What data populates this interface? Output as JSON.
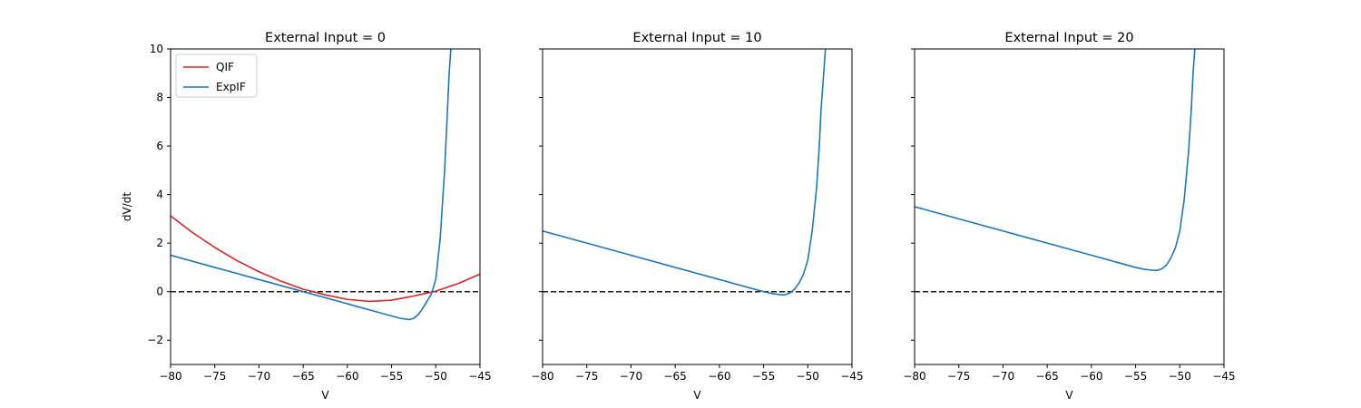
{
  "chart_data": [
    {
      "type": "line",
      "title": "External Input = 0",
      "xlabel": "V",
      "ylabel": "dV/dt",
      "xlim": [
        -80,
        -45
      ],
      "ylim": [
        -3,
        10
      ],
      "x_ticks": [
        "−80",
        "−75",
        "−70",
        "−65",
        "−60",
        "−55",
        "−50",
        "−45"
      ],
      "y_ticks": [
        "−2",
        "0",
        "2",
        "4",
        "6",
        "8",
        "10"
      ],
      "show_y_tick_labels": true,
      "reference_line": {
        "y": 0,
        "style": "dashed",
        "color": "#222222"
      },
      "legend": {
        "placement": "top-left",
        "entries": [
          "QIF",
          "ExpIF"
        ]
      },
      "series": [
        {
          "name": "QIF",
          "color": "#d62728",
          "x": [
            -80,
            -77.5,
            -75,
            -72.5,
            -70,
            -67.5,
            -65,
            -62.5,
            -60,
            -57.5,
            -55,
            -52.5,
            -50,
            -47.5,
            -45
          ],
          "y": [
            3.12,
            2.43,
            1.82,
            1.28,
            0.82,
            0.43,
            0.1,
            -0.13,
            -0.32,
            -0.4,
            -0.35,
            -0.18,
            0.02,
            0.33,
            0.72
          ]
        },
        {
          "name": "ExpIF",
          "color": "#1f77b4",
          "x": [
            -80,
            -75,
            -70,
            -65,
            -60,
            -57,
            -55,
            -54,
            -53,
            -52.5,
            -52,
            -51.5,
            -51,
            -50.5,
            -50,
            -49.5,
            -49,
            -48.7,
            -48.5,
            -48.3
          ],
          "y": [
            1.5,
            1.0,
            0.5,
            0.0,
            -0.5,
            -0.8,
            -1.0,
            -1.1,
            -1.15,
            -1.1,
            -0.95,
            -0.7,
            -0.4,
            -0.1,
            0.5,
            2.2,
            5.0,
            7.3,
            8.9,
            10.0
          ]
        }
      ]
    },
    {
      "type": "line",
      "title": "External Input = 10",
      "xlabel": "V",
      "ylabel": "",
      "xlim": [
        -80,
        -45
      ],
      "ylim": [
        -3,
        10
      ],
      "x_ticks": [
        "−80",
        "−75",
        "−70",
        "−65",
        "−60",
        "−55",
        "−50",
        "−45"
      ],
      "y_ticks": [
        "−2",
        "0",
        "2",
        "4",
        "6",
        "8",
        "10"
      ],
      "show_y_tick_labels": false,
      "reference_line": {
        "y": 0,
        "style": "dashed",
        "color": "#222222"
      },
      "legend": null,
      "series": [
        {
          "color": "#1f77b4",
          "x": [
            -80,
            -75,
            -70,
            -65,
            -60,
            -57,
            -55,
            -54,
            -53,
            -52.5,
            -52,
            -51.5,
            -51,
            -50.5,
            -50,
            -49.5,
            -49,
            -48.7,
            -48.5,
            -48.2,
            -48.0
          ],
          "y": [
            2.5,
            2.0,
            1.5,
            1.0,
            0.5,
            0.2,
            0.0,
            -0.08,
            -0.13,
            -0.12,
            -0.05,
            0.1,
            0.35,
            0.7,
            1.3,
            2.5,
            4.3,
            6.0,
            7.5,
            9.0,
            10.0
          ]
        }
      ]
    },
    {
      "type": "line",
      "title": "External Input = 20",
      "xlabel": "V",
      "ylabel": "",
      "xlim": [
        -80,
        -45
      ],
      "ylim": [
        -3,
        10
      ],
      "x_ticks": [
        "−80",
        "−75",
        "−70",
        "−65",
        "−60",
        "−55",
        "−50",
        "−45"
      ],
      "y_ticks": [
        "−2",
        "0",
        "2",
        "4",
        "6",
        "8",
        "10"
      ],
      "show_y_tick_labels": false,
      "reference_line": {
        "y": 0,
        "style": "dashed",
        "color": "#222222"
      },
      "legend": null,
      "series": [
        {
          "color": "#1f77b4",
          "x": [
            -80,
            -75,
            -70,
            -65,
            -60,
            -57,
            -55,
            -54,
            -53,
            -52.5,
            -52,
            -51.5,
            -51,
            -50.5,
            -50,
            -49.5,
            -49,
            -48.7,
            -48.5,
            -48.3
          ],
          "y": [
            3.5,
            3.0,
            2.5,
            2.0,
            1.5,
            1.2,
            1.0,
            0.92,
            0.88,
            0.88,
            0.95,
            1.1,
            1.4,
            1.8,
            2.5,
            3.8,
            5.8,
            7.5,
            9.0,
            10.0
          ]
        }
      ]
    }
  ]
}
